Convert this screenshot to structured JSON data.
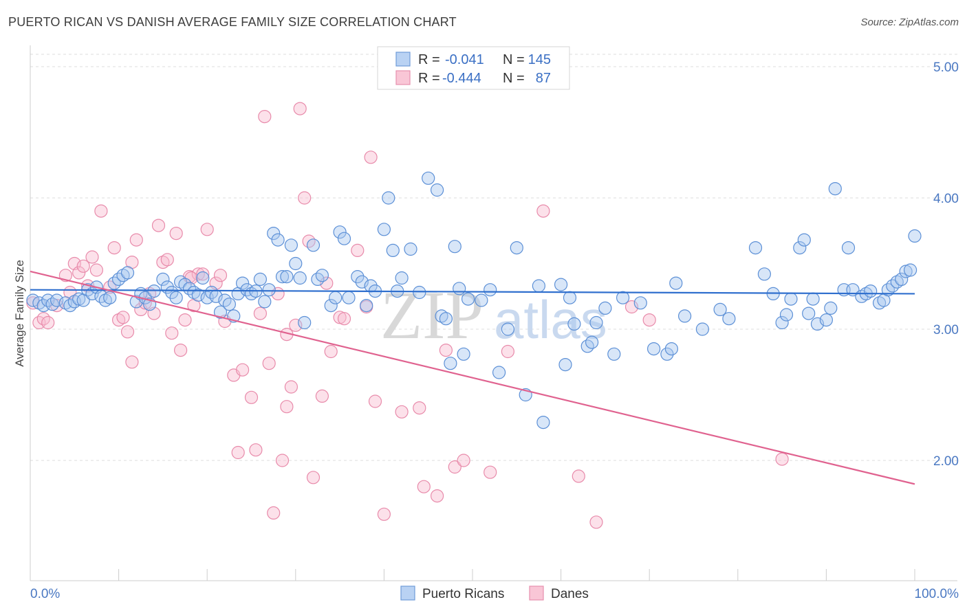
{
  "header": {
    "title": "PUERTO RICAN VS DANISH AVERAGE FAMILY SIZE CORRELATION CHART",
    "source": "Source: ZipAtlas.com"
  },
  "watermark": {
    "zip": "ZIP",
    "atlas": "atlas"
  },
  "legend": {
    "rows": [
      {
        "r_label": "R =",
        "r_value": "-0.041",
        "n_label": "N =",
        "n_value": "145"
      },
      {
        "r_label": "R =",
        "r_value": "-0.444",
        "n_label": "N =",
        "n_value": "87"
      }
    ]
  },
  "bottom_legend": {
    "blue_label": "Puerto Ricans",
    "pink_label": "Danes"
  },
  "colors": {
    "blue_fill": "#a9c8f0",
    "blue_stroke": "#5b8fd6",
    "blue_line": "#2f6fce",
    "pink_fill": "#f8bcd0",
    "pink_stroke": "#e88aaa",
    "pink_line": "#e0628f",
    "grid": "#dddddd",
    "axis_text": "#4a78c2"
  },
  "chart_data": {
    "type": "scatter",
    "title": "PUERTO RICAN VS DANISH AVERAGE FAMILY SIZE CORRELATION CHART",
    "xlabel": "",
    "ylabel": "Average Family Size",
    "xlim": [
      0,
      100
    ],
    "ylim": [
      1.0,
      5.1
    ],
    "x_tick_labels": [
      "0.0%",
      "100.0%"
    ],
    "y_ticks": [
      2.0,
      3.0,
      4.0,
      5.0
    ],
    "y_tick_labels": [
      "2.00",
      "3.00",
      "4.00",
      "5.00"
    ],
    "series": [
      {
        "name": "Puerto Ricans",
        "r": -0.041,
        "n": 145,
        "trend": {
          "x": [
            0,
            100
          ],
          "y": [
            3.3,
            3.27
          ]
        },
        "points": [
          [
            0.3,
            3.22
          ],
          [
            1,
            3.2
          ],
          [
            1.5,
            3.18
          ],
          [
            2,
            3.22
          ],
          [
            2.5,
            3.19
          ],
          [
            3,
            3.22
          ],
          [
            4,
            3.2
          ],
          [
            4.5,
            3.18
          ],
          [
            5,
            3.21
          ],
          [
            5.5,
            3.23
          ],
          [
            6,
            3.22
          ],
          [
            6.5,
            3.3
          ],
          [
            7,
            3.27
          ],
          [
            7.5,
            3.32
          ],
          [
            8,
            3.25
          ],
          [
            8.5,
            3.22
          ],
          [
            9,
            3.24
          ],
          [
            9.5,
            3.35
          ],
          [
            10,
            3.38
          ],
          [
            10.5,
            3.41
          ],
          [
            11,
            3.43
          ],
          [
            12,
            3.21
          ],
          [
            12.5,
            3.27
          ],
          [
            13,
            3.24
          ],
          [
            13.5,
            3.19
          ],
          [
            14,
            3.29
          ],
          [
            15,
            3.38
          ],
          [
            15.5,
            3.32
          ],
          [
            16,
            3.28
          ],
          [
            16.5,
            3.24
          ],
          [
            17,
            3.36
          ],
          [
            17.5,
            3.34
          ],
          [
            18,
            3.31
          ],
          [
            18.5,
            3.28
          ],
          [
            19,
            3.26
          ],
          [
            19.5,
            3.39
          ],
          [
            20,
            3.24
          ],
          [
            20.5,
            3.28
          ],
          [
            21,
            3.25
          ],
          [
            21.5,
            3.13
          ],
          [
            22,
            3.22
          ],
          [
            22.5,
            3.19
          ],
          [
            23,
            3.1
          ],
          [
            23.5,
            3.27
          ],
          [
            24,
            3.35
          ],
          [
            24.5,
            3.3
          ],
          [
            25,
            3.27
          ],
          [
            25.5,
            3.29
          ],
          [
            26,
            3.38
          ],
          [
            26.5,
            3.21
          ],
          [
            27,
            3.3
          ],
          [
            27.5,
            3.73
          ],
          [
            28,
            3.68
          ],
          [
            28.5,
            3.4
          ],
          [
            29,
            3.4
          ],
          [
            29.5,
            3.64
          ],
          [
            30,
            3.5
          ],
          [
            30.5,
            3.39
          ],
          [
            31,
            3.05
          ],
          [
            32,
            3.64
          ],
          [
            32.5,
            3.38
          ],
          [
            33,
            3.41
          ],
          [
            34,
            3.18
          ],
          [
            34.5,
            3.24
          ],
          [
            35,
            3.74
          ],
          [
            35.5,
            3.69
          ],
          [
            36,
            3.24
          ],
          [
            37,
            3.4
          ],
          [
            37.5,
            3.36
          ],
          [
            38,
            3.18
          ],
          [
            38.5,
            3.33
          ],
          [
            39,
            3.29
          ],
          [
            40,
            3.76
          ],
          [
            40.5,
            4.0
          ],
          [
            41,
            3.6
          ],
          [
            41.5,
            3.29
          ],
          [
            42,
            3.39
          ],
          [
            43,
            3.61
          ],
          [
            44,
            3.28
          ],
          [
            45,
            4.15
          ],
          [
            46,
            4.06
          ],
          [
            46.5,
            3.1
          ],
          [
            47,
            3.08
          ],
          [
            47.5,
            2.74
          ],
          [
            48,
            3.63
          ],
          [
            48.5,
            3.31
          ],
          [
            49,
            2.81
          ],
          [
            49.5,
            3.23
          ],
          [
            51,
            3.22
          ],
          [
            53,
            2.67
          ],
          [
            54,
            3.0
          ],
          [
            55,
            3.62
          ],
          [
            56,
            2.5
          ],
          [
            57.5,
            3.33
          ],
          [
            58,
            2.29
          ],
          [
            60,
            3.34
          ],
          [
            60.5,
            2.73
          ],
          [
            61,
            3.24
          ],
          [
            61.5,
            3.04
          ],
          [
            63,
            2.87
          ],
          [
            63.5,
            2.9
          ],
          [
            64,
            3.05
          ],
          [
            65,
            3.16
          ],
          [
            66,
            2.81
          ],
          [
            67,
            3.24
          ],
          [
            69,
            3.2
          ],
          [
            70.5,
            2.85
          ],
          [
            72,
            2.81
          ],
          [
            72.5,
            2.85
          ],
          [
            82,
            3.62
          ],
          [
            83,
            3.42
          ],
          [
            84,
            3.27
          ],
          [
            85,
            3.05
          ],
          [
            85.5,
            3.11
          ],
          [
            86,
            3.23
          ],
          [
            87,
            3.62
          ],
          [
            87.5,
            3.68
          ],
          [
            88,
            3.12
          ],
          [
            88.5,
            3.23
          ],
          [
            89,
            3.04
          ],
          [
            90,
            3.07
          ],
          [
            90.5,
            3.16
          ],
          [
            91,
            4.07
          ],
          [
            92,
            3.3
          ],
          [
            92.5,
            3.62
          ],
          [
            93,
            3.3
          ],
          [
            94,
            3.25
          ],
          [
            94.5,
            3.27
          ],
          [
            95,
            3.29
          ],
          [
            96,
            3.2
          ],
          [
            96.5,
            3.22
          ],
          [
            97,
            3.3
          ],
          [
            97.5,
            3.33
          ],
          [
            98,
            3.36
          ],
          [
            98.5,
            3.38
          ],
          [
            99,
            3.44
          ],
          [
            99.5,
            3.45
          ],
          [
            100,
            3.71
          ],
          [
            78,
            3.15
          ],
          [
            79,
            3.08
          ],
          [
            76,
            3.0
          ],
          [
            74,
            3.1
          ],
          [
            73,
            3.35
          ],
          [
            52,
            3.3
          ]
        ]
      },
      {
        "name": "Danes",
        "r": -0.444,
        "n": 87,
        "trend": {
          "x": [
            0,
            100
          ],
          "y": [
            3.44,
            1.82
          ]
        },
        "points": [
          [
            0.3,
            3.2
          ],
          [
            1,
            3.05
          ],
          [
            1.5,
            3.08
          ],
          [
            2,
            3.05
          ],
          [
            3,
            3.18
          ],
          [
            4,
            3.41
          ],
          [
            4.5,
            3.28
          ],
          [
            5,
            3.5
          ],
          [
            5.5,
            3.43
          ],
          [
            6,
            3.48
          ],
          [
            6.5,
            3.33
          ],
          [
            7,
            3.55
          ],
          [
            7.5,
            3.45
          ],
          [
            8,
            3.9
          ],
          [
            9,
            3.32
          ],
          [
            9.5,
            3.62
          ],
          [
            10,
            3.07
          ],
          [
            10.5,
            3.09
          ],
          [
            11,
            2.98
          ],
          [
            11.5,
            3.51
          ],
          [
            12,
            3.68
          ],
          [
            12.5,
            3.15
          ],
          [
            13,
            3.2
          ],
          [
            13.5,
            3.27
          ],
          [
            14,
            3.12
          ],
          [
            14.5,
            3.79
          ],
          [
            15,
            3.51
          ],
          [
            15.5,
            3.53
          ],
          [
            16,
            2.97
          ],
          [
            16.5,
            3.73
          ],
          [
            17,
            2.84
          ],
          [
            17.5,
            3.07
          ],
          [
            18,
            3.4
          ],
          [
            18.5,
            3.18
          ],
          [
            19,
            3.42
          ],
          [
            19.5,
            3.42
          ],
          [
            20,
            3.76
          ],
          [
            21,
            3.35
          ],
          [
            21.5,
            3.41
          ],
          [
            22,
            3.06
          ],
          [
            23,
            2.65
          ],
          [
            23.5,
            2.06
          ],
          [
            24,
            2.69
          ],
          [
            25,
            2.48
          ],
          [
            25.5,
            2.08
          ],
          [
            26,
            3.12
          ],
          [
            26.5,
            4.62
          ],
          [
            27,
            2.74
          ],
          [
            27.5,
            1.6
          ],
          [
            28,
            3.27
          ],
          [
            28.5,
            2.0
          ],
          [
            29,
            2.96
          ],
          [
            29.5,
            2.56
          ],
          [
            30,
            3.03
          ],
          [
            30.5,
            4.68
          ],
          [
            31,
            4.0
          ],
          [
            31.5,
            3.67
          ],
          [
            32,
            1.87
          ],
          [
            33,
            2.49
          ],
          [
            34,
            2.83
          ],
          [
            35,
            3.09
          ],
          [
            35.5,
            3.08
          ],
          [
            37,
            3.6
          ],
          [
            38,
            3.17
          ],
          [
            38.5,
            4.31
          ],
          [
            39,
            2.45
          ],
          [
            40,
            1.59
          ],
          [
            42,
            2.37
          ],
          [
            44,
            2.4
          ],
          [
            44.5,
            1.8
          ],
          [
            46,
            1.73
          ],
          [
            47,
            2.84
          ],
          [
            48,
            1.95
          ],
          [
            49,
            2.0
          ],
          [
            52,
            1.91
          ],
          [
            54,
            2.83
          ],
          [
            58,
            3.9
          ],
          [
            62,
            1.88
          ],
          [
            64,
            1.53
          ],
          [
            68,
            3.17
          ],
          [
            70,
            3.07
          ],
          [
            85,
            2.01
          ],
          [
            18.2,
            3.39
          ],
          [
            33.5,
            3.35
          ],
          [
            29,
            2.41
          ],
          [
            11.5,
            2.75
          ]
        ]
      }
    ]
  }
}
